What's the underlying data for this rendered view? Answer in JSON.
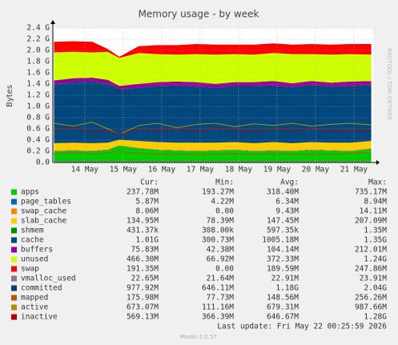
{
  "chart_data": {
    "type": "area",
    "title": "Memory usage - by week",
    "y_label": "Bytes",
    "watermark": "RRDTOOL / TOBI OETIKER",
    "xlim": [
      0.17,
      8.5
    ],
    "xticks": [
      {
        "value": 1,
        "label": "14 May"
      },
      {
        "value": 2,
        "label": "15 May"
      },
      {
        "value": 3,
        "label": "16 May"
      },
      {
        "value": 4,
        "label": "17 May"
      },
      {
        "value": 5,
        "label": "18 May"
      },
      {
        "value": 6,
        "label": "19 May"
      },
      {
        "value": 7,
        "label": "20 May"
      },
      {
        "value": 8,
        "label": "21 May"
      }
    ],
    "ylim": [
      0,
      2.4
    ],
    "yticks": [
      {
        "value": 0,
        "label": "0.0"
      },
      {
        "value": 0.2,
        "label": "0.2 G"
      },
      {
        "value": 0.4,
        "label": "0.4 G"
      },
      {
        "value": 0.6,
        "label": "0.6 G"
      },
      {
        "value": 0.8,
        "label": "0.8 G"
      },
      {
        "value": 1.0,
        "label": "1.0 G"
      },
      {
        "value": 1.2,
        "label": "1.2 G"
      },
      {
        "value": 1.4,
        "label": "1.4 G"
      },
      {
        "value": 1.6,
        "label": "1.6 G"
      },
      {
        "value": 1.8,
        "label": "1.8 G"
      },
      {
        "value": 2.0,
        "label": "2.0 G"
      },
      {
        "value": 2.2,
        "label": "2.2 G"
      },
      {
        "value": 2.4,
        "label": "2.4 G"
      }
    ],
    "grid": true,
    "x": [
      0.2,
      0.7,
      1.2,
      1.6,
      1.9,
      2.4,
      2.9,
      3.4,
      3.9,
      4.4,
      4.9,
      5.4,
      5.9,
      6.4,
      6.9,
      7.4,
      7.9,
      8.45
    ],
    "legend_headers": [
      "Cur:",
      "Min:",
      "Avg:",
      "Max:"
    ],
    "series": [
      {
        "name": "apps",
        "color": "#00CC00",
        "style": "area",
        "values": [
          0.2,
          0.21,
          0.2,
          0.22,
          0.3,
          0.25,
          0.22,
          0.21,
          0.2,
          0.21,
          0.22,
          0.2,
          0.21,
          0.2,
          0.22,
          0.21,
          0.2,
          0.24
        ],
        "stats": [
          "237.78M",
          "193.27M",
          "318.40M",
          "735.17M"
        ]
      },
      {
        "name": "page_tables",
        "color": "#0066B3",
        "style": "area",
        "values": [
          0.006,
          0.006,
          0.006,
          0.006,
          0.006,
          0.006,
          0.006,
          0.006,
          0.006,
          0.006,
          0.006,
          0.006,
          0.006,
          0.006,
          0.006,
          0.006,
          0.006,
          0.006
        ],
        "stats": [
          "5.87M",
          "4.22M",
          "6.34M",
          "8.94M"
        ]
      },
      {
        "name": "swap_cache",
        "color": "#FF8000",
        "style": "area",
        "values": [
          0.008,
          0.008,
          0.008,
          0.008,
          0,
          0.008,
          0.008,
          0.008,
          0.008,
          0.008,
          0.008,
          0.008,
          0.008,
          0.008,
          0.008,
          0.008,
          0.008,
          0.008
        ],
        "stats": [
          "8.06M",
          "0.00",
          "9.43M",
          "14.11M"
        ]
      },
      {
        "name": "slab_cache",
        "color": "#FFCC00",
        "style": "area",
        "values": [
          0.13,
          0.13,
          0.13,
          0.12,
          0.1,
          0.12,
          0.13,
          0.13,
          0.14,
          0.13,
          0.13,
          0.13,
          0.14,
          0.13,
          0.13,
          0.13,
          0.14,
          0.13
        ],
        "stats": [
          "134.95M",
          "78.39M",
          "147.45M",
          "207.09M"
        ]
      },
      {
        "name": "shmem",
        "color": "#008F00",
        "style": "area",
        "values": [
          0.0004,
          0.0004,
          0.0004,
          0.0004,
          0.0004,
          0.0004,
          0.0004,
          0.0004,
          0.0004,
          0.0004,
          0.0004,
          0.0004,
          0.0004,
          0.0004,
          0.0004,
          0.0004,
          0.0004,
          0.0004
        ],
        "stats": [
          "431.37k",
          "308.00k",
          "597.35k",
          "1.35M"
        ]
      },
      {
        "name": "cache",
        "color": "#00487D",
        "style": "area",
        "values": [
          1.05,
          1.08,
          1.1,
          1.05,
          0.9,
          0.95,
          1.0,
          1.02,
          1.0,
          0.98,
          1.0,
          1.02,
          1.01,
          1.0,
          1.02,
          1.0,
          1.01,
          1.0
        ],
        "stats": [
          "1.01G",
          "300.73M",
          "1005.18M",
          "1.35G"
        ]
      },
      {
        "name": "buffers",
        "color": "#990099",
        "style": "area",
        "values": [
          0.07,
          0.07,
          0.07,
          0.07,
          0.06,
          0.07,
          0.07,
          0.07,
          0.08,
          0.07,
          0.07,
          0.07,
          0.08,
          0.07,
          0.07,
          0.07,
          0.08,
          0.07
        ],
        "stats": [
          "75.83M",
          "42.38M",
          "104.14M",
          "212.01M"
        ]
      },
      {
        "name": "unused",
        "color": "#CCFF00",
        "style": "area",
        "values": [
          0.5,
          0.47,
          0.45,
          0.5,
          0.5,
          0.55,
          0.5,
          0.48,
          0.5,
          0.52,
          0.5,
          0.49,
          0.5,
          0.52,
          0.48,
          0.5,
          0.49,
          0.47
        ],
        "stats": [
          "466.30M",
          "66.92M",
          "372.33M",
          "1.24G"
        ]
      },
      {
        "name": "swap",
        "color": "#FF0000",
        "style": "area",
        "values": [
          0.19,
          0.19,
          0.19,
          0.05,
          0.02,
          0.12,
          0.16,
          0.17,
          0.18,
          0.18,
          0.17,
          0.18,
          0.17,
          0.17,
          0.18,
          0.18,
          0.18,
          0.19
        ],
        "stats": [
          "191.35M",
          "0.00",
          "189.59M",
          "247.86M"
        ]
      },
      {
        "name": "vmalloc_used",
        "color": "#808080",
        "style": "line",
        "values": [
          0.022,
          0.022,
          0.022,
          0.022,
          0.022,
          0.022,
          0.022,
          0.022,
          0.022,
          0.022,
          0.022,
          0.022,
          0.022,
          0.022,
          0.022,
          0.022,
          0.022,
          0.022
        ],
        "stats": [
          "22.65M",
          "21.64M",
          "22.91M",
          "23.91M"
        ]
      },
      {
        "name": "committed",
        "color": "#0A3A70",
        "style": "line",
        "values": [
          1.0,
          1.1,
          0.95,
          1.05,
          1.3,
          1.0,
          0.98,
          1.1,
          0.9,
          1.05,
          1.0,
          0.95,
          1.1,
          1.0,
          0.97,
          1.05,
          1.0,
          0.98
        ],
        "stats": [
          "977.92M",
          "646.11M",
          "1.18G",
          "2.04G"
        ]
      },
      {
        "name": "mapped",
        "color": "#B35A00",
        "style": "line",
        "values": [
          0.16,
          0.17,
          0.15,
          0.17,
          0.2,
          0.16,
          0.15,
          0.16,
          0.14,
          0.15,
          0.16,
          0.15,
          0.16,
          0.15,
          0.14,
          0.15,
          0.16,
          0.18
        ],
        "stats": [
          "175.98M",
          "77.73M",
          "148.56M",
          "256.26M"
        ]
      },
      {
        "name": "active",
        "color": "#B38F00",
        "style": "line",
        "values": [
          0.7,
          0.65,
          0.72,
          0.6,
          0.5,
          0.66,
          0.7,
          0.62,
          0.68,
          0.7,
          0.64,
          0.69,
          0.66,
          0.7,
          0.65,
          0.68,
          0.7,
          0.67
        ],
        "stats": [
          "673.07M",
          "111.16M",
          "679.31M",
          "987.66M"
        ]
      },
      {
        "name": "inactive",
        "color": "#B30000",
        "style": "line",
        "values": [
          0.6,
          0.62,
          0.55,
          0.58,
          0.5,
          0.6,
          0.57,
          0.6,
          0.55,
          0.62,
          0.58,
          0.56,
          0.6,
          0.57,
          0.6,
          0.56,
          0.58,
          0.57
        ],
        "stats": [
          "569.13M",
          "366.39M",
          "646.67M",
          "1.28G"
        ]
      }
    ],
    "last_update": "Last update: Fri May 22 00:25:59 2026",
    "footer": "Munin 2.0.57"
  }
}
